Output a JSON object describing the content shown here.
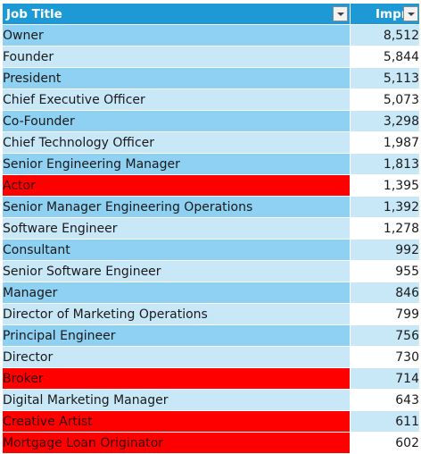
{
  "colors": {
    "header_bg": "#1d9ad6",
    "band_dark": "#8fd1f2",
    "band_light": "#c9e8f7",
    "highlight": "#ff0000"
  },
  "header": {
    "col_title": "Job Title",
    "col_value": "Impr",
    "filter_icon": "dropdown-arrow-icon"
  },
  "rows": [
    {
      "title": "Owner",
      "value": "8,512",
      "highlight": false
    },
    {
      "title": "Founder",
      "value": "5,844",
      "highlight": false
    },
    {
      "title": "President",
      "value": "5,113",
      "highlight": false
    },
    {
      "title": "Chief Executive Officer",
      "value": "5,073",
      "highlight": false
    },
    {
      "title": "Co-Founder",
      "value": "3,298",
      "highlight": false
    },
    {
      "title": "Chief Technology Officer",
      "value": "1,987",
      "highlight": false
    },
    {
      "title": "Senior Engineering Manager",
      "value": "1,813",
      "highlight": false
    },
    {
      "title": "Actor",
      "value": "1,395",
      "highlight": true
    },
    {
      "title": "Senior Manager Engineering Operations",
      "value": "1,392",
      "highlight": false
    },
    {
      "title": "Software Engineer",
      "value": "1,278",
      "highlight": false
    },
    {
      "title": "Consultant",
      "value": "992",
      "highlight": false
    },
    {
      "title": "Senior Software Engineer",
      "value": "955",
      "highlight": false
    },
    {
      "title": "Manager",
      "value": "846",
      "highlight": false
    },
    {
      "title": "Director of Marketing Operations",
      "value": "799",
      "highlight": false
    },
    {
      "title": "Principal Engineer",
      "value": "756",
      "highlight": false
    },
    {
      "title": "Director",
      "value": "730",
      "highlight": false
    },
    {
      "title": "Broker",
      "value": "714",
      "highlight": true
    },
    {
      "title": "Digital Marketing Manager",
      "value": "643",
      "highlight": false
    },
    {
      "title": "Creative Artist",
      "value": "611",
      "highlight": true
    },
    {
      "title": "Mortgage Loan Originator",
      "value": "602",
      "highlight": true
    }
  ]
}
